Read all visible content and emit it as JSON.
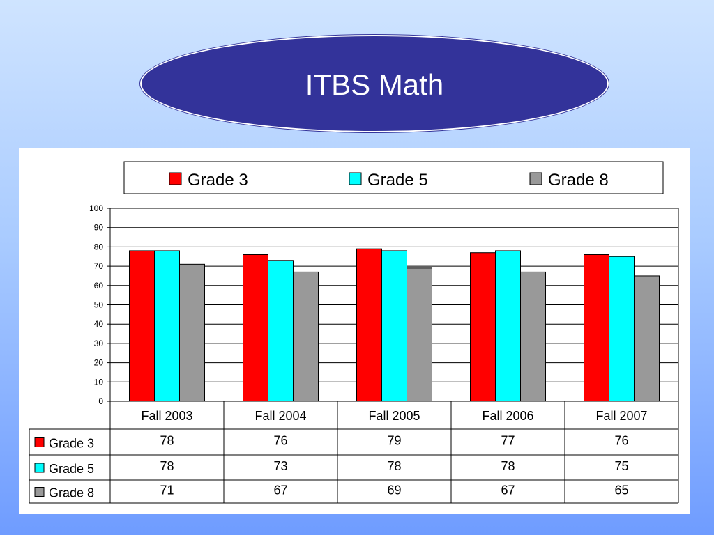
{
  "slide": {
    "title": "ITBS Math"
  },
  "colors": {
    "title_fill": "#33339a",
    "grade3": "#ff0000",
    "grade5": "#00ffff",
    "grade8": "#999999"
  },
  "chart_data": {
    "type": "bar",
    "title": "",
    "xlabel": "",
    "ylabel": "",
    "categories": [
      "Fall 2003",
      "Fall 2004",
      "Fall 2005",
      "Fall 2006",
      "Fall 2007"
    ],
    "series": [
      {
        "name": "Grade 3",
        "values": [
          78,
          76,
          79,
          77,
          76
        ],
        "color": "#ff0000"
      },
      {
        "name": "Grade 5",
        "values": [
          78,
          73,
          78,
          78,
          75
        ],
        "color": "#00ffff"
      },
      {
        "name": "Grade 8",
        "values": [
          71,
          67,
          69,
          67,
          65
        ],
        "color": "#999999"
      }
    ],
    "ylim": [
      0,
      100
    ],
    "yticks": [
      0,
      10,
      20,
      30,
      40,
      50,
      60,
      70,
      80,
      90,
      100
    ],
    "grid": true,
    "legend_position": "top",
    "data_table": true
  }
}
